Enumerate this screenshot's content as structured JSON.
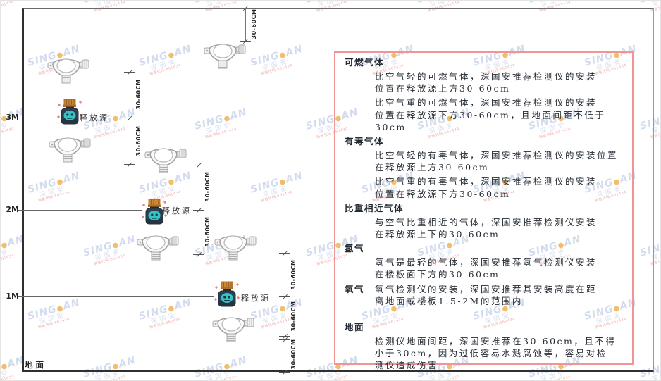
{
  "watermark": {
    "brand_left": "SING",
    "dot": "●",
    "brand_right": "AN",
    "cjk": "深国安",
    "sub": "销售代码:661434"
  },
  "diagram": {
    "dim_label": "30-60CM",
    "release_source_label": "释放源",
    "ground_label": "地面",
    "heights": [
      {
        "label": "3M"
      },
      {
        "label": "2M"
      },
      {
        "label": "1M"
      }
    ]
  },
  "panel": {
    "border_color": "#f19494",
    "sections": [
      {
        "heading": "可燃气体",
        "paragraphs": [
          [
            "比空气轻的可燃气体，深国安推荐检测仪的安装",
            "位置在释放源上方30-60cm"
          ],
          [
            "比空气重的可燃气体，深国安推荐检测仪的安装",
            "位置在释放源下方30-60cm，且地面间距不低于",
            "30cm"
          ]
        ]
      },
      {
        "heading": "有毒气体",
        "paragraphs": [
          [
            "比空气轻的有毒气体，深国安推荐检测仪的安装位置",
            "在释放源上方30-60cm"
          ],
          [
            "比空气重的有毒气体，深国安推荐检测仪的安装",
            "位置在释放源下方30-60cm"
          ]
        ]
      },
      {
        "heading": "比重相近气体",
        "paragraphs": [
          [
            "与空气比重相近的气体，深国安推荐检测仪安装",
            "在释放源上下的30-60cm"
          ]
        ]
      },
      {
        "heading": "氢气",
        "paragraphs": [
          [
            "氢气是最轻的气体，深国安推荐氢气检测仪安装",
            "在楼板面下方的30-60cm"
          ]
        ]
      },
      {
        "heading": "氧气",
        "inline": true,
        "paragraphs": [
          [
            "氧气检测仪的安装，深国安推荐其安装高度在距",
            "离地面或楼板1.5-2M的范围内"
          ]
        ]
      },
      {
        "heading": "地面",
        "extra_gap": true,
        "paragraphs": [
          [
            "检测仪地面间距，深国安推荐在30-60cm，且不得",
            "小于30cm，因为过低容易水溅腐蚀等，容易对检",
            "测仪造成伤害"
          ]
        ]
      }
    ]
  }
}
